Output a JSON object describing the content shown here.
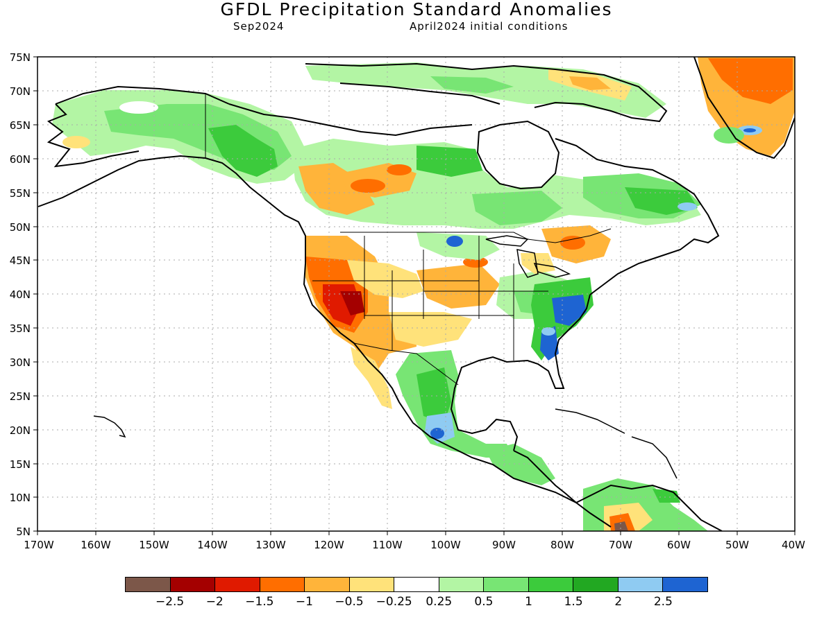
{
  "header": {
    "title": "GFDL Precipitation Standard Anomalies",
    "valid_month": "Sep2024",
    "init": "April2024 initial conditions"
  },
  "axes": {
    "lat_labels": [
      "75N",
      "70N",
      "65N",
      "60N",
      "55N",
      "50N",
      "45N",
      "40N",
      "35N",
      "30N",
      "25N",
      "20N",
      "15N",
      "10N",
      "5N"
    ],
    "lon_labels": [
      "170W",
      "160W",
      "150W",
      "140W",
      "130W",
      "120W",
      "110W",
      "100W",
      "90W",
      "80W",
      "70W",
      "60W",
      "50W",
      "40W"
    ],
    "lat_range": [
      5,
      75
    ],
    "lon_range": [
      -170,
      -40
    ]
  },
  "legend": {
    "colors": [
      "#7c5749",
      "#a40000",
      "#e01a00",
      "#ff6e00",
      "#ffb43a",
      "#ffe27a",
      "#ffffff",
      "#b3f5a4",
      "#78e574",
      "#3ccb3c",
      "#22a822",
      "#8fcbf2",
      "#1e64d2"
    ],
    "labels": [
      "−2.5",
      "−2",
      "−1.5",
      "−1",
      "−0.5",
      "−0.25",
      "0.25",
      "0.5",
      "1",
      "1.5",
      "2",
      "2.5"
    ]
  },
  "anomaly_regions": [
    {
      "name": "greenland-east",
      "lon": -47,
      "lat": 71,
      "level": -1
    },
    {
      "name": "southwest-us",
      "lon": -117,
      "lat": 37,
      "level": -1.5
    },
    {
      "name": "southeast-us",
      "lon": -80,
      "lat": 36,
      "level": 2
    },
    {
      "name": "southern-mexico",
      "lon": -101,
      "lat": 20,
      "level": 2
    },
    {
      "name": "northern-south-america",
      "lon": -70,
      "lat": 6,
      "level": -2.5
    }
  ]
}
